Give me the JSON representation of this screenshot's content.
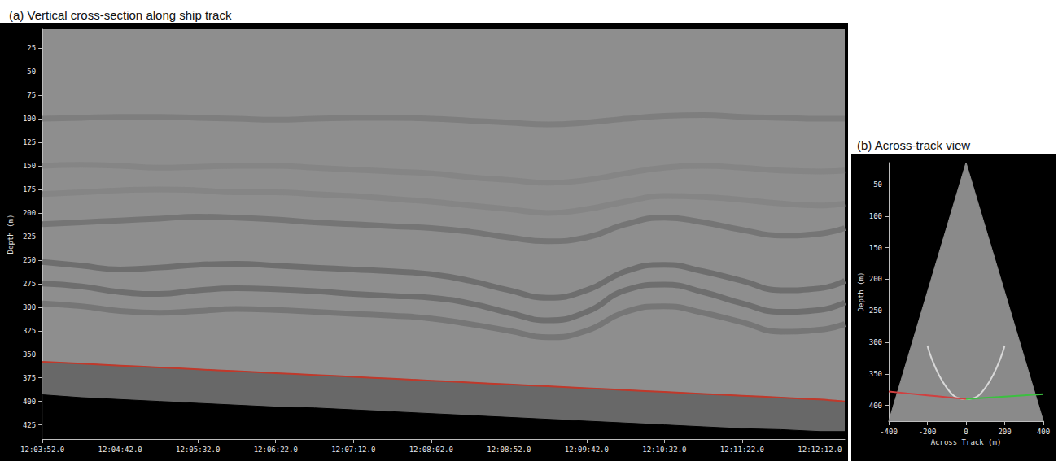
{
  "chart_data": [
    {
      "type": "line",
      "title": "(a) Vertical cross-section along ship track",
      "ylabel": "Depth (m)",
      "x": [
        43432,
        43457,
        43482,
        43507,
        43532,
        43557,
        43582,
        43607,
        43632,
        43657,
        43682,
        43707,
        43732,
        43757,
        43782,
        43807,
        43832,
        43857,
        43882,
        43907,
        43932,
        43948
      ],
      "xlim": [
        43432,
        43948
      ],
      "xticks": [
        {
          "value": 43432,
          "label": "12:03:52.0"
        },
        {
          "value": 43482,
          "label": "12:04:42.0"
        },
        {
          "value": 43532,
          "label": "12:05:32.0"
        },
        {
          "value": 43582,
          "label": "12:06:22.0"
        },
        {
          "value": 43632,
          "label": "12:07:12.0"
        },
        {
          "value": 43682,
          "label": "12:08:02.0"
        },
        {
          "value": 43732,
          "label": "12:08:52.0"
        },
        {
          "value": 43782,
          "label": "12:09:42.0"
        },
        {
          "value": 43832,
          "label": "12:10:32.0"
        },
        {
          "value": 43882,
          "label": "12:11:22.0"
        },
        {
          "value": 43932,
          "label": "12:12:12.0"
        }
      ],
      "ylim": [
        5,
        440
      ],
      "yticks": [
        25,
        50,
        75,
        100,
        125,
        150,
        175,
        200,
        225,
        250,
        275,
        300,
        325,
        350,
        375,
        400,
        425
      ],
      "grid": false,
      "series": [
        {
          "type": "area",
          "color": "#686868",
          "values": [
            358,
            360,
            362,
            364,
            366,
            368,
            370,
            372,
            374,
            376,
            378,
            380,
            382,
            384,
            386,
            388,
            390,
            392,
            394,
            396,
            398,
            400
          ]
        },
        {
          "type": "area",
          "color": "#000000",
          "values": [
            393,
            396,
            398,
            400,
            402,
            404,
            406,
            407,
            409,
            411,
            413,
            415,
            417,
            419,
            421,
            423,
            425,
            427,
            429,
            430,
            432,
            432
          ]
        },
        {
          "type": "band",
          "color": "#7c7c7c",
          "values": [
            100,
            99,
            98,
            98,
            99,
            100,
            101,
            100,
            99,
            99,
            100,
            102,
            104,
            106,
            104,
            100,
            97,
            96,
            98,
            99,
            100,
            100
          ]
        },
        {
          "type": "band",
          "color": "#848484",
          "values": [
            150,
            149,
            150,
            152,
            151,
            150,
            150,
            152,
            154,
            156,
            158,
            162,
            165,
            168,
            165,
            158,
            152,
            150,
            152,
            155,
            156,
            155
          ]
        },
        {
          "type": "band",
          "color": "#848484",
          "values": [
            180,
            178,
            176,
            175,
            176,
            178,
            178,
            180,
            182,
            185,
            188,
            192,
            196,
            200,
            196,
            188,
            182,
            183,
            186,
            190,
            192,
            190
          ]
        },
        {
          "type": "band",
          "color": "#727272",
          "values": [
            212,
            210,
            208,
            206,
            204,
            205,
            207,
            210,
            212,
            214,
            216,
            220,
            226,
            230,
            226,
            212,
            205,
            210,
            218,
            224,
            222,
            216
          ]
        },
        {
          "type": "band",
          "color": "#6a6a6a",
          "values": [
            252,
            256,
            260,
            258,
            255,
            254,
            256,
            258,
            260,
            262,
            265,
            272,
            282,
            290,
            282,
            262,
            255,
            262,
            272,
            282,
            280,
            272
          ]
        },
        {
          "type": "band",
          "color": "#6a6a6a",
          "values": [
            275,
            278,
            284,
            286,
            282,
            280,
            281,
            283,
            286,
            288,
            290,
            296,
            306,
            314,
            305,
            282,
            276,
            284,
            296,
            305,
            303,
            295
          ]
        },
        {
          "type": "band",
          "color": "#737373",
          "values": [
            296,
            299,
            304,
            306,
            304,
            302,
            303,
            305,
            307,
            309,
            312,
            318,
            325,
            332,
            325,
            305,
            299,
            306,
            316,
            326,
            324,
            318
          ]
        },
        {
          "type": "line",
          "color": "#c0392b",
          "values": [
            358,
            360,
            362,
            364,
            366,
            368,
            370,
            372,
            374,
            376,
            378,
            380,
            382,
            384,
            386,
            388,
            390,
            392,
            394,
            396,
            398,
            400
          ]
        }
      ]
    },
    {
      "type": "line",
      "title": "(b) Across-track view",
      "xlabel": "Across Track (m)",
      "ylabel": "Depth (m)",
      "x": [
        -400,
        -300,
        -200,
        -100,
        0,
        100,
        200,
        300,
        400
      ],
      "xlim": [
        -400,
        400
      ],
      "xticks": [
        -400,
        -200,
        0,
        200,
        400
      ],
      "ylim": [
        15,
        425
      ],
      "yticks": [
        50,
        100,
        150,
        200,
        250,
        300,
        350,
        400
      ],
      "grid": false,
      "series": [
        {
          "type": "area",
          "color": "#8a8a8a",
          "values": [
            425,
            322.5,
            220,
            117.5,
            15,
            117.5,
            220,
            322.5,
            425
          ]
        },
        {
          "type": "line",
          "color": "#d8d8d8",
          "values": [
            null,
            null,
            305,
            372,
            390,
            372,
            305,
            null,
            null
          ]
        },
        {
          "type": "line",
          "color": "#d04040",
          "values": [
            378,
            381,
            384,
            387,
            390,
            null,
            null,
            null,
            null
          ]
        },
        {
          "type": "line",
          "color": "#3cc040",
          "values": [
            null,
            null,
            null,
            null,
            390,
            388,
            386,
            384,
            382
          ]
        }
      ]
    }
  ]
}
